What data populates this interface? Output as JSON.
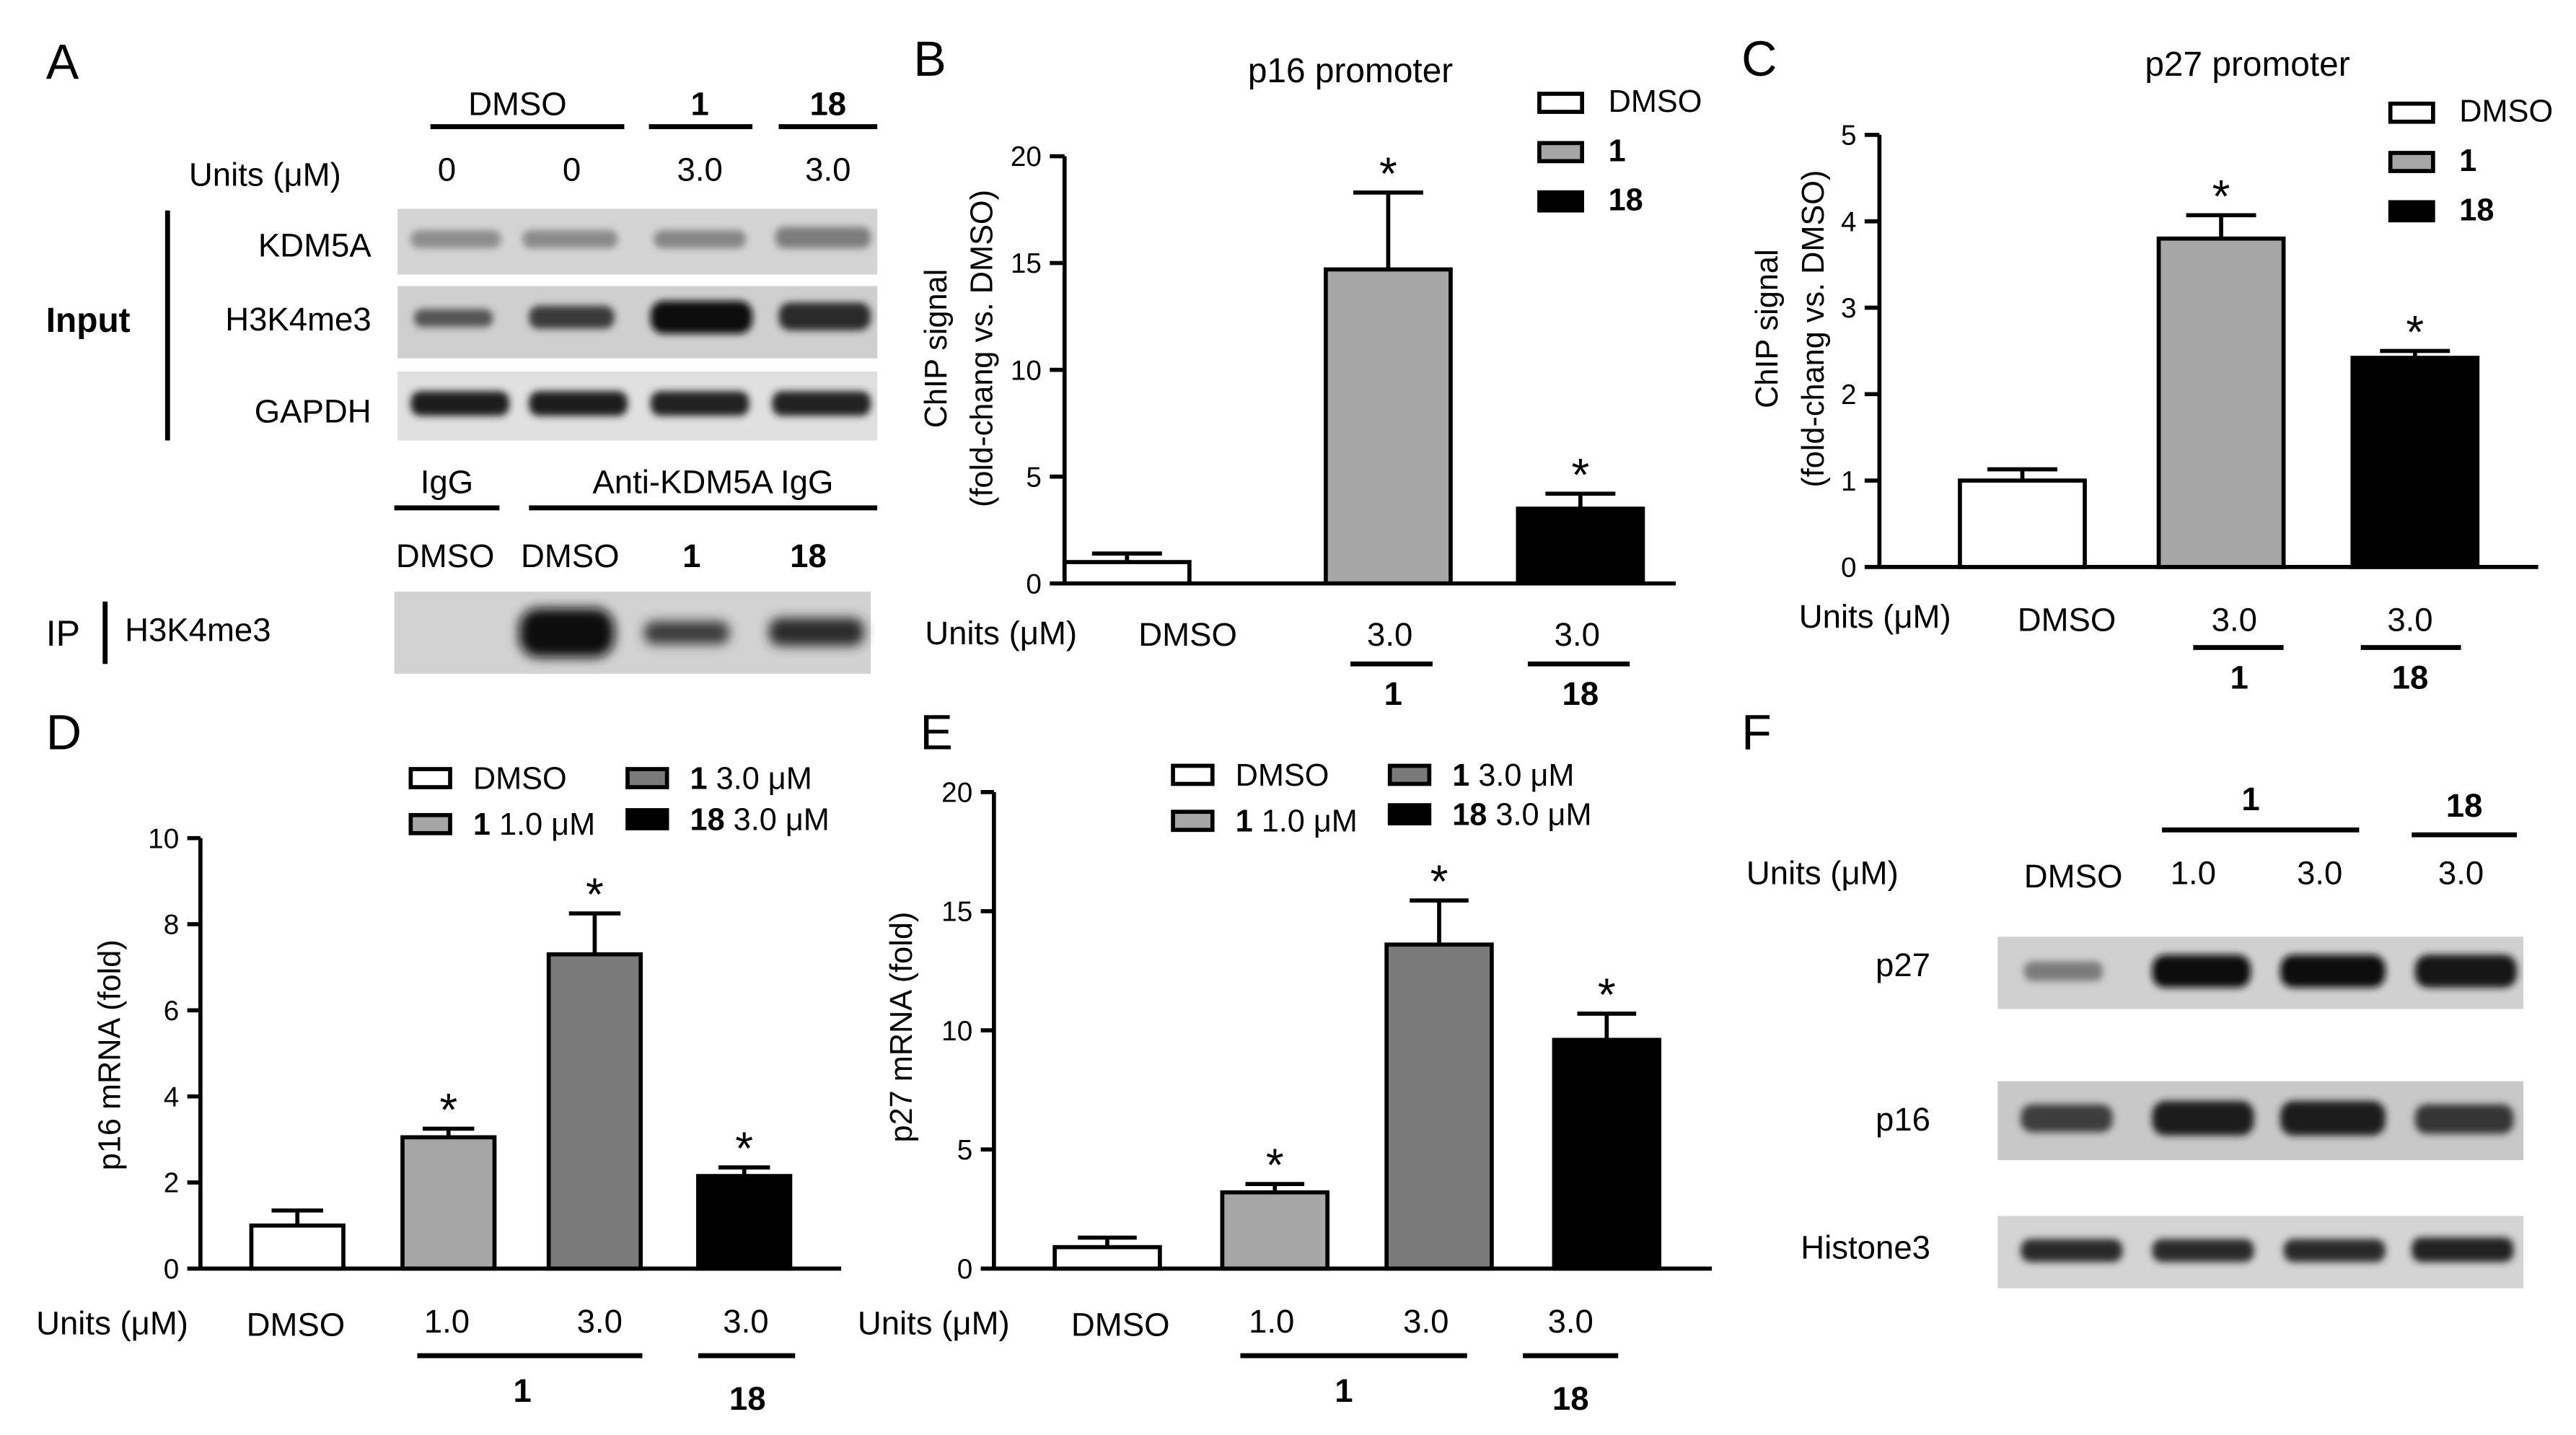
{
  "panels": {
    "A": {
      "letter": "A",
      "group_dmso": "DMSO",
      "group_1": "1",
      "group_18": "18",
      "units_label": "Units (μM)",
      "dose_values": [
        "0",
        "0",
        "3.0",
        "3.0"
      ],
      "input_label": "Input",
      "input_rows": [
        "KDM5A",
        "H3K4me3",
        "GAPDH"
      ],
      "ip_igg": "IgG",
      "ip_anti": "Anti-KDM5A IgG",
      "ip_lanes": [
        "DMSO",
        "DMSO",
        "1",
        "18"
      ],
      "ip_label": "IP",
      "ip_row": "H3K4me3"
    },
    "B": {
      "letter": "B",
      "units_label": "Units (μM)",
      "x_dmso": "DMSO",
      "x_dose_1": "3.0",
      "x_cmp_1": "1",
      "x_dose_2": "3.0",
      "x_cmp_2": "18"
    },
    "C": {
      "letter": "C",
      "units_label": "Units (μM)",
      "x_dmso": "DMSO",
      "x_dose_1": "3.0",
      "x_cmp_1": "1",
      "x_dose_2": "3.0",
      "x_cmp_2": "18"
    },
    "D": {
      "letter": "D",
      "units_label": "Units (μM)",
      "x_labels": [
        "DMSO",
        "1.0",
        "3.0",
        "3.0"
      ],
      "group_1": "1",
      "group_18": "18"
    },
    "E": {
      "letter": "E",
      "units_label": "Units (μM)",
      "x_labels": [
        "DMSO",
        "1.0",
        "3.0",
        "3.0"
      ],
      "group_1": "1",
      "group_18": "18"
    },
    "F": {
      "letter": "F",
      "group_1": "1",
      "group_18": "18",
      "units_label": "Units (μM)",
      "lanes": [
        "DMSO",
        "1.0",
        "3.0",
        "3.0"
      ],
      "rows": [
        "p27",
        "p16",
        "Histone3"
      ]
    }
  },
  "chart_data": [
    {
      "id": "B",
      "type": "bar",
      "title": "p16 promoter",
      "ylabel": "ChIP signal (fold-chang vs. DMSO)",
      "ylim": [
        0,
        20
      ],
      "yticks": [
        "0",
        "5",
        "10",
        "15",
        "20"
      ],
      "legend": [
        "DMSO",
        "1",
        "18"
      ],
      "categories": [
        "DMSO",
        "1 3.0 μM",
        "18 3.0 μM"
      ],
      "values": [
        1.0,
        14.7,
        3.5
      ],
      "errors": [
        0.4,
        3.6,
        0.7
      ],
      "significance": [
        "",
        "*",
        "*"
      ],
      "colors": [
        "#ffffff",
        "#a6a6a6",
        "#000000"
      ]
    },
    {
      "id": "C",
      "type": "bar",
      "title": "p27 promoter",
      "ylabel": "ChIP signal (fold-chang vs. DMSO)",
      "ylim": [
        0,
        5
      ],
      "yticks": [
        "0",
        "1",
        "2",
        "3",
        "4",
        "5"
      ],
      "legend": [
        "DMSO",
        "1",
        "18"
      ],
      "categories": [
        "DMSO",
        "1 3.0 μM",
        "18 3.0 μM"
      ],
      "values": [
        1.0,
        3.8,
        2.42
      ],
      "errors": [
        0.13,
        0.27,
        0.08
      ],
      "significance": [
        "",
        "*",
        "*"
      ],
      "colors": [
        "#ffffff",
        "#a6a6a6",
        "#000000"
      ]
    },
    {
      "id": "D",
      "type": "bar",
      "ylabel": "p16 mRNA (fold)",
      "ylim": [
        0,
        10
      ],
      "yticks": [
        "0",
        "2",
        "4",
        "6",
        "8",
        "10"
      ],
      "legend": [
        {
          "label": "DMSO",
          "bold": ""
        },
        {
          "label": "1.0 μM",
          "bold": "1"
        },
        {
          "label": "3.0 μM",
          "bold": "1"
        },
        {
          "label": "3.0 μM",
          "bold": "18"
        }
      ],
      "categories": [
        "DMSO",
        "1 1.0 μM",
        "1 3.0 μM",
        "18 3.0 μM"
      ],
      "values": [
        1.0,
        3.05,
        7.3,
        2.15
      ],
      "errors": [
        0.35,
        0.2,
        0.95,
        0.2
      ],
      "significance": [
        "",
        "*",
        "*",
        "*"
      ],
      "colors": [
        "#ffffff",
        "#a6a6a6",
        "#7a7a7a",
        "#000000"
      ]
    },
    {
      "id": "E",
      "type": "bar",
      "ylabel": "p27 mRNA (fold)",
      "ylim": [
        0,
        20
      ],
      "yticks": [
        "0",
        "5",
        "10",
        "15",
        "20"
      ],
      "legend": [
        {
          "label": "DMSO",
          "bold": ""
        },
        {
          "label": "1.0 μM",
          "bold": "1"
        },
        {
          "label": "3.0 μM",
          "bold": "1"
        },
        {
          "label": "3.0 μM",
          "bold": "18"
        }
      ],
      "categories": [
        "DMSO",
        "1 1.0 μM",
        "1 3.0 μM",
        "18 3.0 μM"
      ],
      "values": [
        0.9,
        3.2,
        13.6,
        9.6
      ],
      "errors": [
        0.4,
        0.35,
        1.85,
        1.1
      ],
      "significance": [
        "",
        "*",
        "*",
        "*"
      ],
      "colors": [
        "#ffffff",
        "#a6a6a6",
        "#7a7a7a",
        "#000000"
      ]
    }
  ]
}
